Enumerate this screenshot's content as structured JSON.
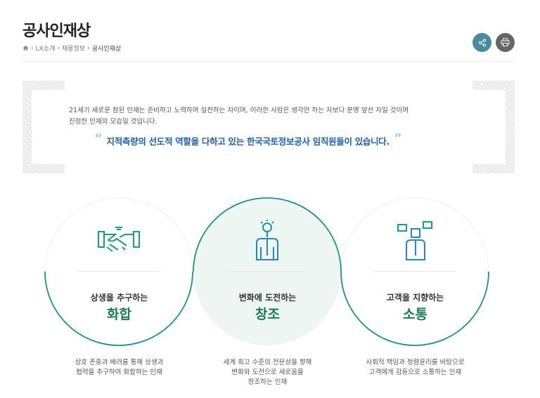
{
  "page": {
    "title": "공사인재상"
  },
  "breadcrumb": {
    "home_icon": "home-icon",
    "items": [
      "LX소개",
      "채용정보",
      "공사인재상"
    ]
  },
  "actions": {
    "share_icon": "share-icon",
    "print_icon": "print-icon"
  },
  "intro": {
    "text_line1": "21세기 새로운 참된 인재는 준비하고 노력하며 실천하는 자이며, 이러한 사람은 생각만 하는 자보다 분명 앞선 자일 것이며",
    "text_line2": "진정한 인재의 모습일 것입니다.",
    "quote": "지적측량의 선도적 역할을 다하고 있는 한국국토정보공사 임직원들이 있습니다.",
    "open_mark": "“",
    "close_mark": "”"
  },
  "values": [
    {
      "icon": "handshake-icon",
      "sub": "상생을 추구하는",
      "title": "화합",
      "desc1": "상호 존중과 배려를 통해 상생과",
      "desc2": "협력을 추구하여 화합하는 인재",
      "desc3": ""
    },
    {
      "icon": "lightbulb-person-icon",
      "sub": "변화에 도전하는",
      "title": "창조",
      "desc1": "세계 최고 수준의 전문성을 향해",
      "desc2": "변화와 도전으로 새로움을",
      "desc3": "창조하는 인재"
    },
    {
      "icon": "speech-person-icon",
      "sub": "고객을 지향하는",
      "title": "소통",
      "desc1": "사회적 책임과 청렴윤리를 바탕으로",
      "desc2": "고객에게 감동으로 소통하는 인재",
      "desc3": ""
    }
  ],
  "colors": {
    "accent": "#1c9479",
    "title_green": "#1c7a55",
    "quote_blue": "#1f5fa8"
  }
}
